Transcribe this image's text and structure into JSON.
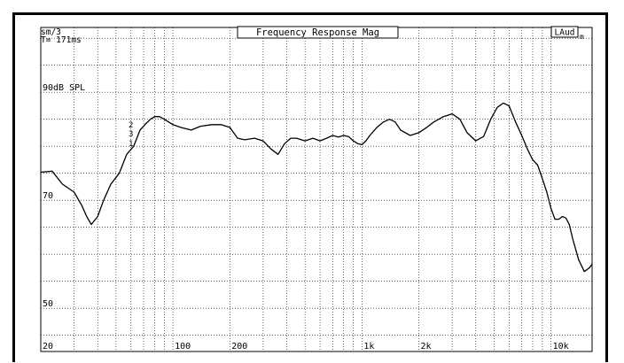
{
  "chart_data": {
    "type": "line",
    "title": "Frequency Response Mag",
    "corner_top_left": [
      "sm/3",
      "T= 171ms"
    ],
    "badge": {
      "main": "LAud",
      "sub": "m"
    },
    "xscale": "log",
    "xlim": [
      20,
      16500
    ],
    "ylim": [
      42,
      102
    ],
    "grid": true,
    "x_tick_labels": [
      {
        "value": 20,
        "label": "20"
      },
      {
        "value": 100,
        "label": "100"
      },
      {
        "value": 200,
        "label": "200"
      },
      {
        "value": 1000,
        "label": "1k"
      },
      {
        "value": 2000,
        "label": "2k"
      },
      {
        "value": 10000,
        "label": "10k"
      }
    ],
    "y_tick_labels": [
      {
        "value": 90,
        "label": "90dB SPL"
      },
      {
        "value": 70,
        "label": "70"
      },
      {
        "value": 50,
        "label": "50"
      }
    ],
    "markers": [
      "2",
      "3",
      "1"
    ],
    "series": [
      {
        "x": [
          20,
          23,
          26,
          30,
          33,
          35,
          37,
          40,
          43,
          47,
          52,
          57,
          62,
          67,
          72,
          76,
          80,
          85,
          90,
          100,
          110,
          125,
          140,
          160,
          180,
          200,
          220,
          240,
          270,
          300,
          330,
          360,
          390,
          420,
          450,
          500,
          550,
          600,
          650,
          700,
          750,
          800,
          850,
          900,
          950,
          1000,
          1050,
          1100,
          1200,
          1300,
          1400,
          1500,
          1600,
          1800,
          2000,
          2200,
          2400,
          2700,
          3000,
          3300,
          3600,
          4000,
          4400,
          4800,
          5200,
          5600,
          6000,
          6500,
          7000,
          7500,
          8000,
          8500,
          9000,
          9500,
          10000,
          10500,
          11000,
          11500,
          12000,
          12500,
          13000,
          14000,
          15000,
          16000,
          16500
        ],
        "y": [
          75.2,
          75.4,
          73,
          71.5,
          69,
          67,
          65.5,
          67,
          70,
          73,
          75,
          78.5,
          80,
          83,
          84.2,
          85,
          85.5,
          85.5,
          85,
          84,
          83.5,
          83,
          83.7,
          84,
          84,
          83.5,
          81.5,
          81.2,
          81.5,
          81,
          79.5,
          78.5,
          80.5,
          81.5,
          81.5,
          81,
          81.5,
          81,
          81.5,
          82,
          81.7,
          82,
          81.8,
          81,
          80.5,
          80.3,
          81,
          82,
          83.5,
          84.5,
          85,
          84.5,
          83,
          82,
          82.5,
          83.5,
          84.5,
          85.5,
          86,
          85,
          82.5,
          81,
          81.8,
          85,
          87.2,
          88,
          87.5,
          84.5,
          82,
          79.5,
          77.5,
          76.5,
          74,
          71.5,
          68.5,
          66.5,
          66.5,
          67,
          66.7,
          65.5,
          63,
          59,
          56.8,
          57.5,
          58.2
        ]
      }
    ]
  }
}
